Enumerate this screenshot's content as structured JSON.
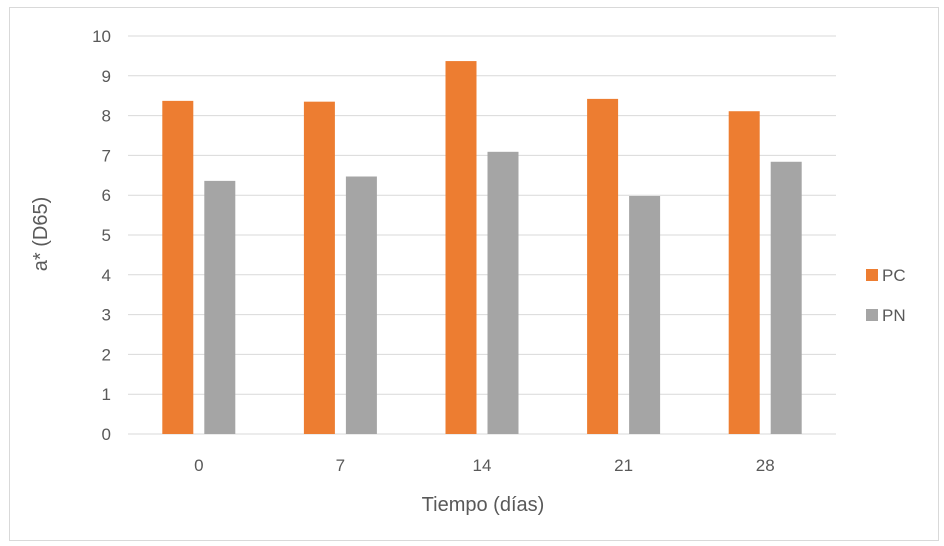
{
  "chart_data": {
    "type": "bar",
    "categories": [
      "0",
      "7",
      "14",
      "21",
      "28"
    ],
    "series": [
      {
        "name": "PC",
        "color": "#ED7D31",
        "values": [
          8.37,
          8.35,
          9.37,
          8.42,
          8.11
        ]
      },
      {
        "name": "PN",
        "color": "#A5A5A5",
        "values": [
          6.36,
          6.47,
          7.09,
          5.98,
          6.84
        ]
      }
    ],
    "xlabel": "Tiempo (días)",
    "ylabel": "a* (D65)",
    "ylim": [
      0,
      10
    ],
    "yticks": [
      "0",
      "1",
      "2",
      "3",
      "4",
      "5",
      "6",
      "7",
      "8",
      "9",
      "10"
    ],
    "grid": true,
    "legend": "right"
  }
}
